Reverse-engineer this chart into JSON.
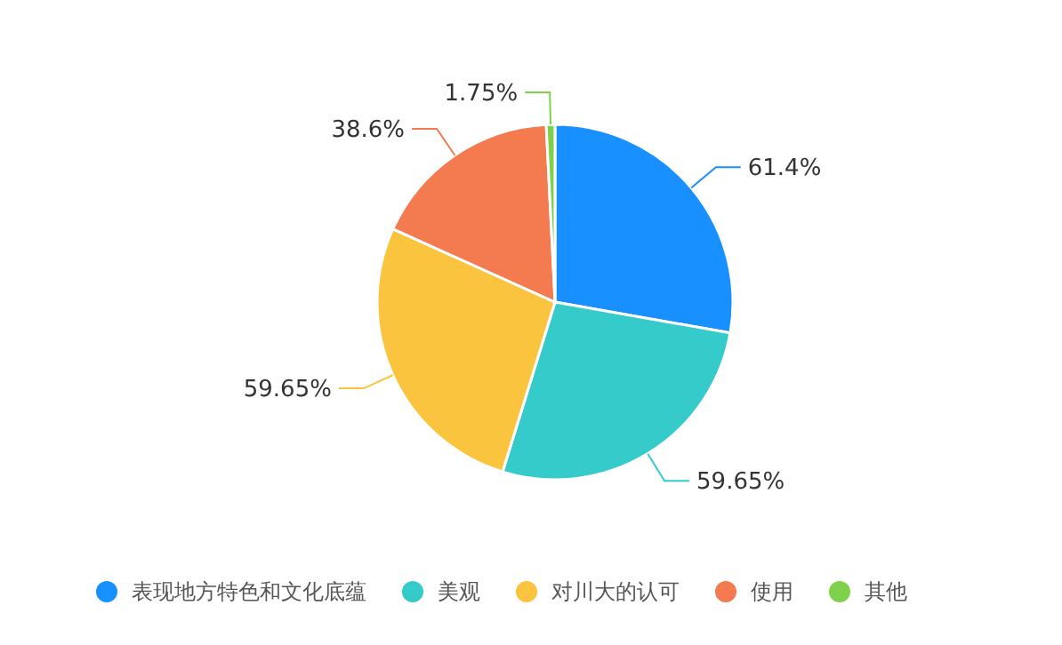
{
  "chart_data": {
    "type": "pie",
    "categories": [
      "表现地方特色和文化底蕴",
      "美观",
      "对川大的认可",
      "使用",
      "其他"
    ],
    "values": [
      61.4,
      59.65,
      59.65,
      38.6,
      1.75
    ],
    "value_labels": [
      "61.4%",
      "59.65%",
      "59.65%",
      "38.6%",
      "1.75%"
    ],
    "colors": [
      "#1890ff",
      "#36cbcb",
      "#fbc43f",
      "#f47b4f",
      "#7ed14b"
    ],
    "legend": "bottom"
  }
}
